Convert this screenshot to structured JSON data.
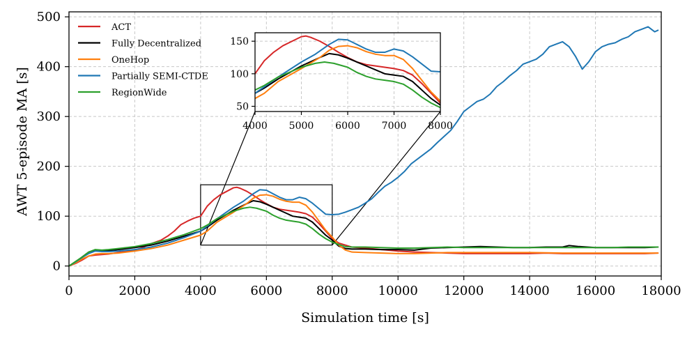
{
  "chart_data": {
    "type": "line",
    "xlabel": "Simulation time [s]",
    "ylabel": "AWT 5-episode MA  [s]",
    "xlim": [
      0,
      18000
    ],
    "ylim": [
      -20,
      510
    ],
    "xticks": [
      0,
      2000,
      4000,
      6000,
      8000,
      10000,
      12000,
      14000,
      16000,
      18000
    ],
    "yticks": [
      0,
      100,
      200,
      300,
      400,
      500
    ],
    "grid": true,
    "legend_position": "upper-left",
    "series": [
      {
        "name": "ACT",
        "color": "#d62728",
        "points": [
          [
            0,
            0
          ],
          [
            200,
            5
          ],
          [
            400,
            12
          ],
          [
            600,
            20
          ],
          [
            800,
            22
          ],
          [
            1000,
            23
          ],
          [
            1200,
            24
          ],
          [
            1500,
            27
          ],
          [
            2000,
            32
          ],
          [
            2200,
            36
          ],
          [
            2500,
            45
          ],
          [
            2800,
            52
          ],
          [
            3000,
            60
          ],
          [
            3200,
            70
          ],
          [
            3400,
            83
          ],
          [
            3600,
            90
          ],
          [
            3800,
            96
          ],
          [
            4000,
            100
          ],
          [
            4200,
            120
          ],
          [
            4400,
            133
          ],
          [
            4600,
            143
          ],
          [
            4800,
            150
          ],
          [
            5000,
            157
          ],
          [
            5100,
            158
          ],
          [
            5200,
            156
          ],
          [
            5400,
            150
          ],
          [
            5600,
            142
          ],
          [
            5800,
            133
          ],
          [
            6000,
            125
          ],
          [
            6200,
            118
          ],
          [
            6400,
            114
          ],
          [
            6600,
            112
          ],
          [
            6800,
            110
          ],
          [
            7000,
            108
          ],
          [
            7200,
            105
          ],
          [
            7400,
            98
          ],
          [
            7600,
            85
          ],
          [
            7800,
            70
          ],
          [
            8000,
            55
          ],
          [
            8200,
            46
          ],
          [
            8400,
            42
          ],
          [
            8600,
            38
          ],
          [
            9000,
            36
          ],
          [
            9500,
            33
          ],
          [
            10000,
            30
          ],
          [
            10500,
            28
          ],
          [
            11000,
            27
          ],
          [
            11500,
            26
          ],
          [
            12000,
            25
          ],
          [
            12500,
            25
          ],
          [
            13000,
            25
          ],
          [
            14000,
            25
          ],
          [
            14500,
            26
          ],
          [
            15000,
            25
          ],
          [
            15500,
            25
          ],
          [
            16000,
            25
          ],
          [
            16500,
            25
          ],
          [
            17000,
            25
          ],
          [
            17500,
            25
          ],
          [
            17900,
            26
          ]
        ]
      },
      {
        "name": "Fully Decentralized",
        "color": "#000000",
        "points": [
          [
            0,
            0
          ],
          [
            200,
            8
          ],
          [
            400,
            18
          ],
          [
            600,
            28
          ],
          [
            800,
            32
          ],
          [
            1000,
            30
          ],
          [
            1200,
            31
          ],
          [
            1500,
            33
          ],
          [
            2000,
            37
          ],
          [
            2500,
            42
          ],
          [
            3000,
            50
          ],
          [
            3500,
            60
          ],
          [
            4000,
            70
          ],
          [
            4200,
            78
          ],
          [
            4500,
            92
          ],
          [
            5000,
            112
          ],
          [
            5400,
            125
          ],
          [
            5600,
            131
          ],
          [
            5800,
            129
          ],
          [
            6000,
            124
          ],
          [
            6200,
            118
          ],
          [
            6400,
            112
          ],
          [
            6600,
            106
          ],
          [
            6800,
            100
          ],
          [
            7000,
            98
          ],
          [
            7200,
            96
          ],
          [
            7400,
            88
          ],
          [
            7600,
            75
          ],
          [
            7800,
            62
          ],
          [
            8000,
            52
          ],
          [
            8200,
            40
          ],
          [
            8400,
            35
          ],
          [
            8600,
            34
          ],
          [
            9000,
            34
          ],
          [
            9500,
            33
          ],
          [
            10000,
            33
          ],
          [
            10500,
            32
          ],
          [
            11000,
            36
          ],
          [
            11500,
            37
          ],
          [
            12000,
            38
          ],
          [
            12500,
            39
          ],
          [
            13000,
            38
          ],
          [
            13500,
            37
          ],
          [
            14000,
            37
          ],
          [
            14500,
            38
          ],
          [
            15000,
            38
          ],
          [
            15200,
            41
          ],
          [
            15500,
            39
          ],
          [
            16000,
            37
          ],
          [
            16500,
            37
          ],
          [
            17000,
            37
          ],
          [
            17500,
            37
          ],
          [
            17900,
            38
          ]
        ]
      },
      {
        "name": "OneHop",
        "color": "#ff7f0e",
        "points": [
          [
            0,
            0
          ],
          [
            200,
            6
          ],
          [
            400,
            14
          ],
          [
            600,
            20
          ],
          [
            800,
            24
          ],
          [
            1000,
            25
          ],
          [
            1200,
            25
          ],
          [
            1500,
            26
          ],
          [
            2000,
            30
          ],
          [
            2500,
            35
          ],
          [
            3000,
            42
          ],
          [
            3500,
            52
          ],
          [
            4000,
            62
          ],
          [
            4200,
            70
          ],
          [
            4500,
            88
          ],
          [
            5000,
            108
          ],
          [
            5400,
            125
          ],
          [
            5600,
            136
          ],
          [
            5800,
            142
          ],
          [
            6000,
            143
          ],
          [
            6200,
            140
          ],
          [
            6400,
            134
          ],
          [
            6600,
            130
          ],
          [
            6800,
            128
          ],
          [
            7000,
            128
          ],
          [
            7200,
            122
          ],
          [
            7400,
            108
          ],
          [
            7600,
            90
          ],
          [
            7800,
            72
          ],
          [
            8000,
            58
          ],
          [
            8200,
            42
          ],
          [
            8400,
            32
          ],
          [
            8600,
            28
          ],
          [
            9000,
            27
          ],
          [
            9500,
            26
          ],
          [
            10000,
            25
          ],
          [
            10500,
            25
          ],
          [
            11000,
            26
          ],
          [
            11500,
            27
          ],
          [
            12000,
            27
          ],
          [
            12500,
            27
          ],
          [
            13000,
            27
          ],
          [
            14000,
            27
          ],
          [
            15000,
            26
          ],
          [
            15500,
            26
          ],
          [
            16000,
            26
          ],
          [
            16500,
            26
          ],
          [
            17000,
            26
          ],
          [
            17500,
            26
          ],
          [
            17900,
            26
          ]
        ]
      },
      {
        "name": "Partially SEMI-CTDE",
        "color": "#1f77b4",
        "points": [
          [
            0,
            0
          ],
          [
            200,
            8
          ],
          [
            400,
            17
          ],
          [
            600,
            25
          ],
          [
            800,
            30
          ],
          [
            1000,
            29
          ],
          [
            1200,
            29
          ],
          [
            1500,
            30
          ],
          [
            2000,
            33
          ],
          [
            2500,
            38
          ],
          [
            3000,
            46
          ],
          [
            3500,
            57
          ],
          [
            4000,
            70
          ],
          [
            4200,
            80
          ],
          [
            4500,
            95
          ],
          [
            5000,
            118
          ],
          [
            5300,
            130
          ],
          [
            5600,
            145
          ],
          [
            5800,
            153
          ],
          [
            6000,
            152
          ],
          [
            6200,
            145
          ],
          [
            6400,
            138
          ],
          [
            6600,
            133
          ],
          [
            6800,
            133
          ],
          [
            7000,
            138
          ],
          [
            7200,
            135
          ],
          [
            7400,
            126
          ],
          [
            7600,
            115
          ],
          [
            7800,
            104
          ],
          [
            8000,
            103
          ],
          [
            8200,
            104
          ],
          [
            8400,
            108
          ],
          [
            8600,
            113
          ],
          [
            8800,
            118
          ],
          [
            9000,
            126
          ],
          [
            9200,
            135
          ],
          [
            9400,
            148
          ],
          [
            9600,
            160
          ],
          [
            9800,
            168
          ],
          [
            10000,
            178
          ],
          [
            10200,
            190
          ],
          [
            10400,
            205
          ],
          [
            10600,
            215
          ],
          [
            10800,
            225
          ],
          [
            11000,
            235
          ],
          [
            11200,
            248
          ],
          [
            11400,
            260
          ],
          [
            11600,
            272
          ],
          [
            11800,
            290
          ],
          [
            12000,
            310
          ],
          [
            12200,
            320
          ],
          [
            12400,
            330
          ],
          [
            12600,
            335
          ],
          [
            12800,
            345
          ],
          [
            13000,
            360
          ],
          [
            13200,
            370
          ],
          [
            13400,
            382
          ],
          [
            13600,
            392
          ],
          [
            13800,
            405
          ],
          [
            14000,
            410
          ],
          [
            14200,
            415
          ],
          [
            14400,
            425
          ],
          [
            14600,
            440
          ],
          [
            14800,
            445
          ],
          [
            15000,
            450
          ],
          [
            15200,
            440
          ],
          [
            15400,
            420
          ],
          [
            15600,
            395
          ],
          [
            15800,
            410
          ],
          [
            16000,
            430
          ],
          [
            16200,
            440
          ],
          [
            16400,
            445
          ],
          [
            16600,
            448
          ],
          [
            16800,
            455
          ],
          [
            17000,
            460
          ],
          [
            17200,
            470
          ],
          [
            17400,
            475
          ],
          [
            17600,
            480
          ],
          [
            17800,
            470
          ],
          [
            17900,
            473
          ]
        ]
      },
      {
        "name": "RegionWide",
        "color": "#2ca02c",
        "points": [
          [
            0,
            0
          ],
          [
            200,
            9
          ],
          [
            400,
            18
          ],
          [
            600,
            28
          ],
          [
            800,
            33
          ],
          [
            1000,
            32
          ],
          [
            1200,
            33
          ],
          [
            1500,
            35
          ],
          [
            2000,
            39
          ],
          [
            2500,
            45
          ],
          [
            3000,
            53
          ],
          [
            3500,
            63
          ],
          [
            4000,
            75
          ],
          [
            4200,
            82
          ],
          [
            4500,
            95
          ],
          [
            5000,
            110
          ],
          [
            5300,
            116
          ],
          [
            5500,
            118
          ],
          [
            5700,
            116
          ],
          [
            6000,
            110
          ],
          [
            6200,
            102
          ],
          [
            6400,
            96
          ],
          [
            6600,
            92
          ],
          [
            6800,
            90
          ],
          [
            7000,
            88
          ],
          [
            7200,
            84
          ],
          [
            7400,
            75
          ],
          [
            7600,
            64
          ],
          [
            7800,
            55
          ],
          [
            8000,
            48
          ],
          [
            8200,
            43
          ],
          [
            8400,
            39
          ],
          [
            8600,
            38
          ],
          [
            9000,
            38
          ],
          [
            9500,
            37
          ],
          [
            10000,
            36
          ],
          [
            10500,
            36
          ],
          [
            11000,
            37
          ],
          [
            11500,
            38
          ],
          [
            12000,
            37
          ],
          [
            12500,
            37
          ],
          [
            13000,
            37
          ],
          [
            14000,
            37
          ],
          [
            14500,
            37
          ],
          [
            15000,
            37
          ],
          [
            15500,
            37
          ],
          [
            16000,
            37
          ],
          [
            16500,
            37
          ],
          [
            17000,
            38
          ],
          [
            17500,
            38
          ],
          [
            17900,
            38
          ]
        ]
      }
    ],
    "inset": {
      "xlim": [
        4000,
        8000
      ],
      "ylim": [
        42,
        163
      ],
      "xticks": [
        4000,
        5000,
        6000,
        7000,
        8000
      ],
      "yticks": [
        50,
        100,
        150
      ]
    }
  }
}
